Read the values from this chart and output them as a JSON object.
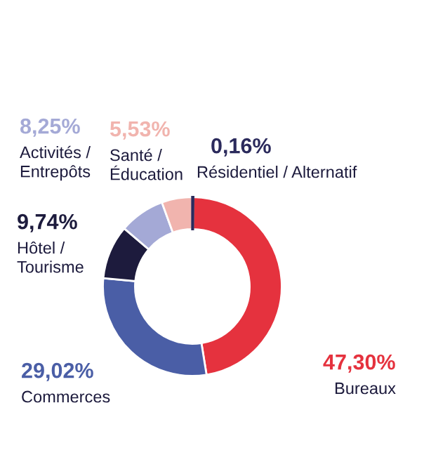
{
  "chart_data": {
    "type": "donut",
    "categories": [
      "Résidentiel / Alternatif",
      "Bureaux",
      "Commerces",
      "Hôtel / Tourisme",
      "Activités / Entrepôts",
      "Santé / Éducation"
    ],
    "values": [
      0.16,
      47.3,
      29.02,
      9.74,
      8.25,
      5.53
    ],
    "value_labels": [
      "0,16%",
      "47,30%",
      "29,02%",
      "9,74%",
      "8,25%",
      "5,53%"
    ],
    "colors": [
      "#2b2a5c",
      "#e5323e",
      "#4a5ea6",
      "#1d1b3d",
      "#a4a9d6",
      "#f1b4ae"
    ],
    "legend": false
  }
}
